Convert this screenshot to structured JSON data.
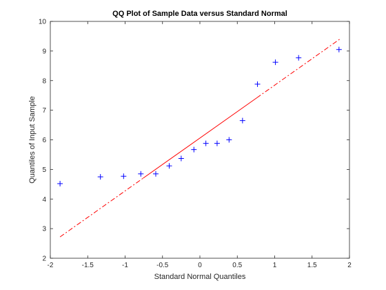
{
  "chart_data": {
    "type": "scatter",
    "title": "QQ Plot of Sample Data versus Standard Normal",
    "xlabel": "Standard Normal Quantiles",
    "ylabel": "Quantiles of Input Sample",
    "xlim": [
      -2,
      2
    ],
    "ylim": [
      2,
      10
    ],
    "xticks": [
      -2,
      -1.5,
      -1,
      -0.5,
      0,
      0.5,
      1,
      1.5,
      2
    ],
    "xtick_labels": [
      "-2",
      "-1.5",
      "-1",
      "-0.5",
      "0",
      "0.5",
      "1",
      "1.5",
      "2"
    ],
    "yticks": [
      2,
      3,
      4,
      5,
      6,
      7,
      8,
      9,
      10
    ],
    "ytick_labels": [
      "2",
      "3",
      "4",
      "5",
      "6",
      "7",
      "8",
      "9",
      "10"
    ],
    "grid": false,
    "series": [
      {
        "marker": "+",
        "color": "#0000ff",
        "x": [
          -1.87,
          -1.33,
          -1.02,
          -0.79,
          -0.59,
          -0.41,
          -0.25,
          -0.08,
          0.08,
          0.23,
          0.39,
          0.57,
          0.77,
          1.01,
          1.32,
          1.86
        ],
        "y": [
          4.52,
          4.75,
          4.77,
          4.85,
          4.85,
          5.12,
          5.37,
          5.67,
          5.88,
          5.88,
          6.0,
          6.65,
          7.88,
          8.62,
          8.77,
          9.05
        ]
      }
    ],
    "reference_line": {
      "color": "#ff0000",
      "x": [
        -1.87,
        1.87
      ],
      "y": [
        2.72,
        9.4
      ],
      "solid_x_range": [
        -0.76,
        0.76
      ],
      "dash_style": "dash-dot"
    }
  }
}
